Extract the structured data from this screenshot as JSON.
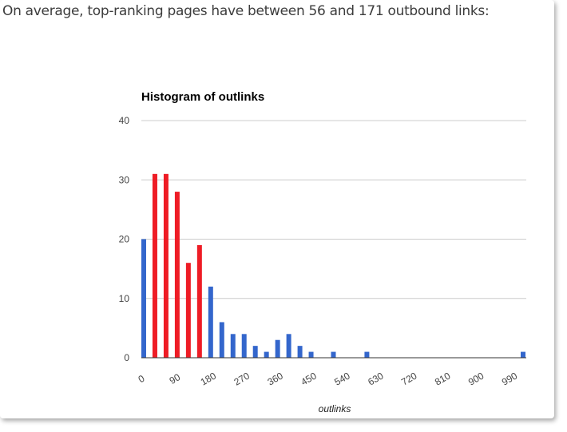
{
  "heading": "On average, top-ranking pages have between 56 and 171 outbound links:",
  "chart_data": {
    "type": "bar",
    "title": "Histogram of outlinks",
    "xlabel": "outlinks",
    "ylabel": "",
    "ylim": [
      0,
      40
    ],
    "xlim": [
      0,
      1035
    ],
    "bin_width": 15,
    "y_ticks": [
      0,
      10,
      20,
      30,
      40
    ],
    "x_ticks": [
      0,
      90,
      180,
      270,
      360,
      450,
      540,
      630,
      720,
      810,
      900,
      990
    ],
    "grid": true,
    "bins": [
      {
        "x": 0,
        "value": 20,
        "color": "#3366cc"
      },
      {
        "x": 30,
        "value": 31,
        "color": "#ee1c25"
      },
      {
        "x": 60,
        "value": 31,
        "color": "#ee1c25"
      },
      {
        "x": 90,
        "value": 28,
        "color": "#ee1c25"
      },
      {
        "x": 120,
        "value": 16,
        "color": "#ee1c25"
      },
      {
        "x": 150,
        "value": 19,
        "color": "#ee1c25"
      },
      {
        "x": 180,
        "value": 12,
        "color": "#3366cc"
      },
      {
        "x": 210,
        "value": 6,
        "color": "#3366cc"
      },
      {
        "x": 240,
        "value": 4,
        "color": "#3366cc"
      },
      {
        "x": 270,
        "value": 4,
        "color": "#3366cc"
      },
      {
        "x": 300,
        "value": 2,
        "color": "#3366cc"
      },
      {
        "x": 330,
        "value": 1,
        "color": "#3366cc"
      },
      {
        "x": 360,
        "value": 3,
        "color": "#3366cc"
      },
      {
        "x": 390,
        "value": 4,
        "color": "#3366cc"
      },
      {
        "x": 420,
        "value": 2,
        "color": "#3366cc"
      },
      {
        "x": 450,
        "value": 1,
        "color": "#3366cc"
      },
      {
        "x": 510,
        "value": 1,
        "color": "#3366cc"
      },
      {
        "x": 600,
        "value": 1,
        "color": "#3366cc"
      },
      {
        "x": 1020,
        "value": 1,
        "color": "#3366cc"
      }
    ]
  }
}
